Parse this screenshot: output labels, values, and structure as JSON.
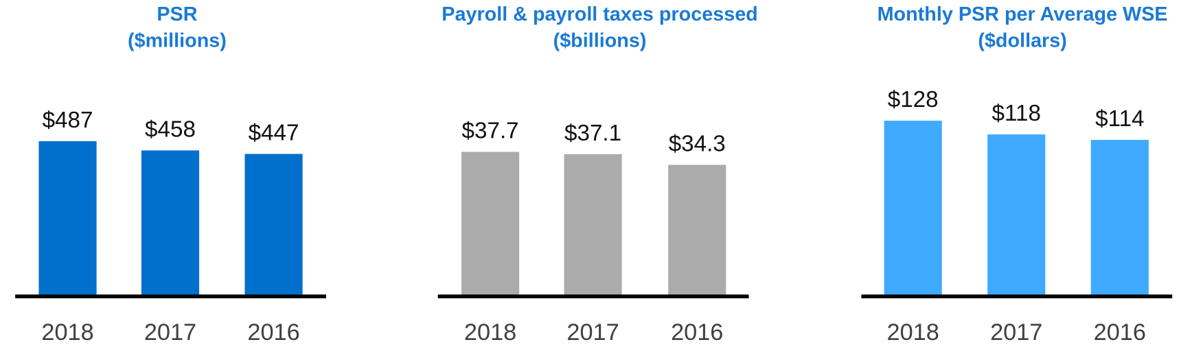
{
  "chart_data": [
    {
      "type": "bar",
      "title": "PSR",
      "subtitle": "($millions)",
      "categories": [
        "2018",
        "2017",
        "2016"
      ],
      "values": [
        487,
        458,
        447
      ],
      "data_labels": [
        "$487",
        "$458",
        "$447"
      ],
      "color": "#0070CC",
      "grid": false
    },
    {
      "type": "bar",
      "title": "Payroll & payroll taxes processed",
      "subtitle": "($billions)",
      "categories": [
        "2018",
        "2017",
        "2016"
      ],
      "values": [
        37.7,
        37.1,
        34.3
      ],
      "data_labels": [
        "$37.7",
        "$37.1",
        "$34.3"
      ],
      "color": "#ABABAB",
      "grid": false
    },
    {
      "type": "bar",
      "title": "Monthly PSR per Average WSE",
      "subtitle": "($dollars)",
      "categories": [
        "2018",
        "2017",
        "2016"
      ],
      "values": [
        128,
        118,
        114
      ],
      "data_labels": [
        "$128",
        "$118",
        "$114"
      ],
      "color": "#3FAAFF",
      "grid": false
    }
  ]
}
